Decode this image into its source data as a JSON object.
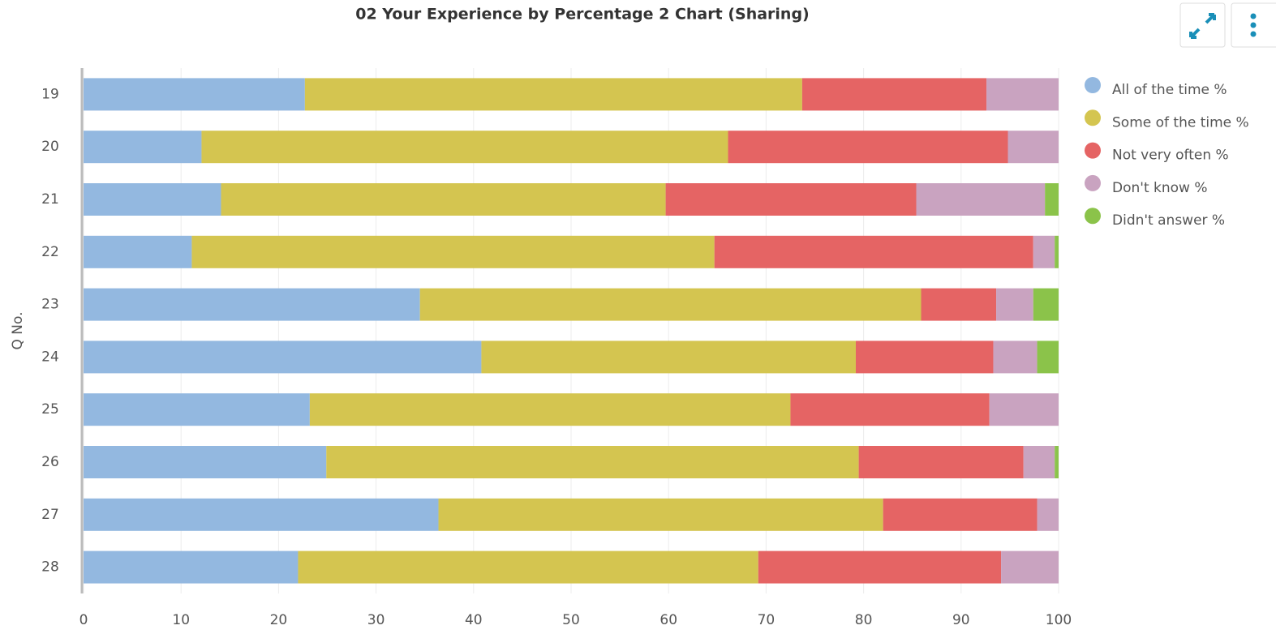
{
  "chart_data": {
    "type": "stacked-barh",
    "title": "02 Your Experience by Percentage 2 Chart (Sharing)",
    "y_label": "Q No.",
    "categories": [
      "19",
      "20",
      "21",
      "22",
      "23",
      "24",
      "25",
      "26",
      "27",
      "28"
    ],
    "series": [
      {
        "name": "All of the time %",
        "color": "#93b8e0",
        "values": [
          22.7,
          12.1,
          14.1,
          11.1,
          34.5,
          40.8,
          23.2,
          24.9,
          36.4,
          22.0
        ]
      },
      {
        "name": "Some of the time %",
        "color": "#d4c550",
        "values": [
          51.0,
          54.0,
          45.6,
          53.6,
          51.4,
          38.4,
          49.3,
          54.6,
          45.6,
          47.2
        ]
      },
      {
        "name": "Not very often %",
        "color": "#e56464",
        "values": [
          18.9,
          28.7,
          25.7,
          32.7,
          7.7,
          14.1,
          20.4,
          16.9,
          15.8,
          24.9
        ]
      },
      {
        "name": "Don't know %",
        "color": "#c9a3c0",
        "values": [
          7.4,
          5.2,
          13.2,
          2.2,
          3.8,
          4.5,
          7.1,
          3.2,
          2.2,
          5.9
        ]
      },
      {
        "name": "Didn't answer %",
        "color": "#8bc34a",
        "values": [
          0,
          0,
          1.4,
          0.4,
          2.6,
          2.2,
          0,
          0.4,
          0,
          0
        ]
      }
    ],
    "xlim": [
      0,
      100
    ],
    "xticks": [
      0,
      10,
      20,
      30,
      40,
      50,
      60,
      70,
      80,
      90,
      100
    ],
    "grid": true,
    "legend": "right"
  }
}
